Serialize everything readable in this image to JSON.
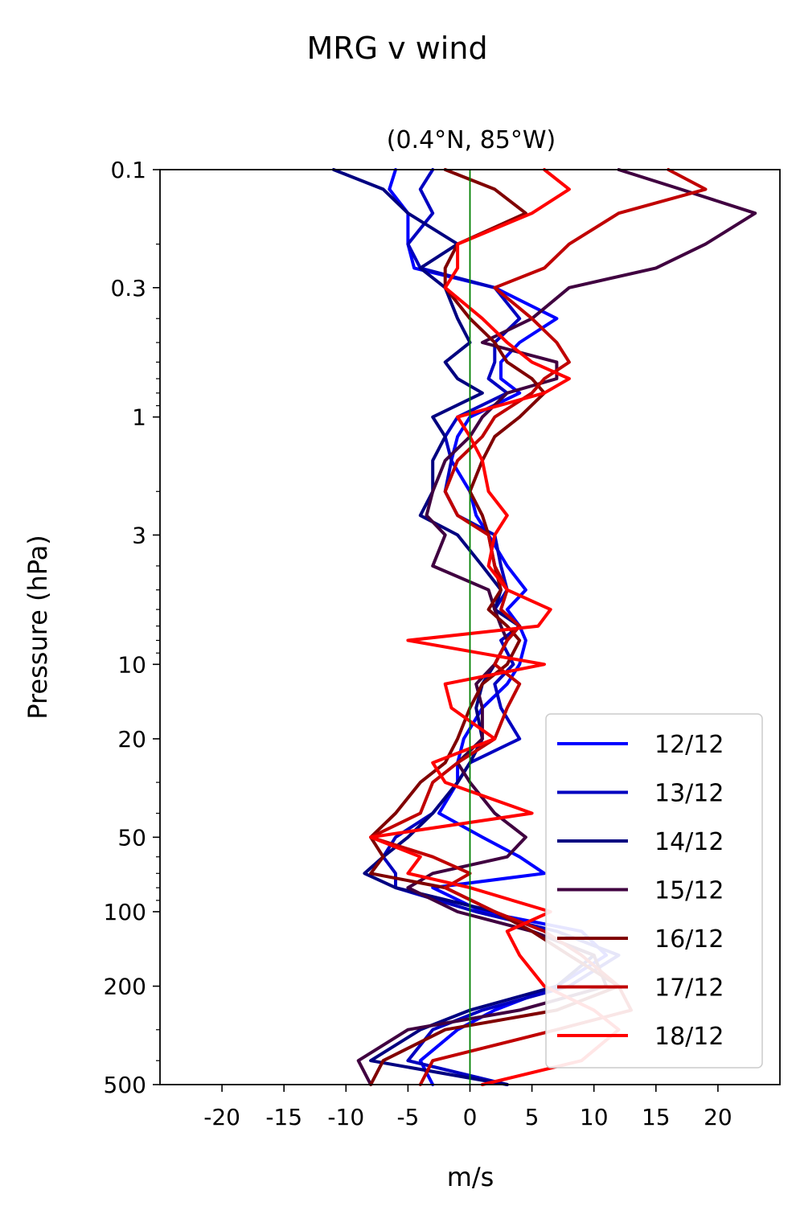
{
  "figure_title": "MRG v wind",
  "chart_data": {
    "type": "line",
    "title": "(0.4°N, 85°W)",
    "xlabel": "m/s",
    "ylabel": "Pressure (hPa)",
    "xlim": [
      -25,
      25
    ],
    "ylim": [
      500,
      0.1
    ],
    "yscale": "log",
    "x_ticks": [
      -20,
      -15,
      -10,
      -5,
      0,
      5,
      10,
      15,
      20
    ],
    "x_tick_labels": [
      "-20",
      "-15",
      "-10",
      "-5",
      "0",
      "5",
      "10",
      "15",
      "20"
    ],
    "y_ticks": [
      0.1,
      0.3,
      1,
      3,
      10,
      20,
      50,
      100,
      200,
      500
    ],
    "y_tick_labels": [
      "0.1",
      "0.3",
      "1",
      "3",
      "10",
      "20",
      "50",
      "100",
      "200",
      "500"
    ],
    "zero_line": {
      "x": 0,
      "color": "#008000"
    },
    "legend_position": "lower right",
    "pressure_levels": [
      0.1,
      0.12,
      0.15,
      0.2,
      0.25,
      0.3,
      0.4,
      0.5,
      0.6,
      0.7,
      0.8,
      1,
      1.2,
      1.5,
      2,
      2.5,
      3,
      4,
      5,
      6,
      7,
      8,
      10,
      12,
      15,
      20,
      25,
      30,
      40,
      50,
      60,
      70,
      80,
      100,
      120,
      150,
      200,
      250,
      300,
      400,
      500
    ],
    "series": [
      {
        "name": "12/12",
        "color": "#0000ff",
        "values": [
          -6,
          -6.5,
          -5,
          -5,
          -4.5,
          2,
          7,
          4,
          2.5,
          2.5,
          4,
          0,
          -1,
          -1.5,
          0,
          0.5,
          1.5,
          3,
          4.5,
          3,
          4,
          4.5,
          4,
          3,
          1,
          -0.5,
          -1,
          -1,
          -2.5,
          1,
          4,
          6,
          -3,
          1,
          9,
          11,
          7,
          2,
          -1,
          -4,
          -3
        ]
      },
      {
        "name": "13/12",
        "color": "#0000c0",
        "values": [
          -3,
          -4,
          -3,
          -5,
          -4,
          2,
          4,
          2,
          2,
          1.5,
          3,
          -1,
          -2,
          -1.5,
          -2,
          -1,
          2,
          2.5,
          3,
          2,
          4,
          2.5,
          3.5,
          2,
          2.5,
          4,
          0,
          -1,
          -3,
          -6,
          -7,
          -6,
          -6,
          0.5,
          7,
          12,
          8,
          1,
          -3,
          -5,
          3
        ]
      },
      {
        "name": "14/12",
        "color": "#000080",
        "values": [
          -11,
          -7,
          -5,
          -1,
          -4,
          -2,
          -1,
          0,
          -2,
          -1,
          1,
          -3,
          -2,
          -3,
          -3,
          -4,
          -1,
          1,
          2.5,
          2,
          4,
          3,
          2,
          1,
          0.5,
          1,
          0,
          -1,
          -3,
          -5,
          -7,
          -8.5,
          -6,
          2,
          5,
          10,
          7,
          0,
          -4,
          -8,
          3
        ]
      },
      {
        "name": "15/12",
        "color": "#400040",
        "values": [
          12,
          17,
          23,
          19,
          15,
          8,
          5,
          1,
          7,
          7,
          3,
          1,
          0,
          -2,
          -3,
          -3.5,
          -2,
          -3,
          1.5,
          2,
          2.5,
          3,
          2,
          0.5,
          1,
          1,
          -1,
          0,
          2,
          4.5,
          3,
          -3,
          -5,
          -1,
          5,
          10,
          11,
          4,
          -5,
          -9,
          -8
        ]
      },
      {
        "name": "16/12",
        "color": "#800000",
        "values": [
          -2,
          2,
          4.5,
          -1,
          -2,
          -2,
          0,
          2,
          3,
          5,
          6,
          4,
          2,
          1,
          0,
          1,
          1.5,
          2,
          2.5,
          1.5,
          3,
          4,
          3,
          1,
          0,
          -1,
          -2,
          -4,
          -6,
          -8,
          -7,
          -8,
          -2,
          2,
          5,
          8,
          12,
          7,
          -2,
          -7,
          -8
        ]
      },
      {
        "name": "17/12",
        "color": "#c00000",
        "values": [
          16,
          19,
          12,
          8,
          6,
          2,
          5,
          7,
          8,
          6,
          5,
          2,
          1,
          -1,
          -2,
          -1,
          1.5,
          2,
          3,
          2.5,
          4,
          3,
          2,
          4,
          3,
          2,
          -1,
          -3,
          -4,
          -8,
          -3,
          0,
          -2,
          2,
          6,
          9,
          12,
          13,
          7,
          -3,
          -4
        ]
      },
      {
        "name": "18/12",
        "color": "#ff0000",
        "values": [
          6,
          8,
          5,
          -1,
          -1,
          -2,
          1,
          3,
          5,
          8,
          6,
          -1,
          0,
          1,
          1.5,
          3,
          2,
          1.5,
          3,
          6.5,
          5.5,
          -5,
          6,
          -2,
          -1.5,
          2,
          -3,
          -2,
          5,
          -8,
          -4,
          -5,
          0,
          6.5,
          3,
          4,
          6,
          10,
          12,
          9,
          1
        ]
      }
    ]
  }
}
